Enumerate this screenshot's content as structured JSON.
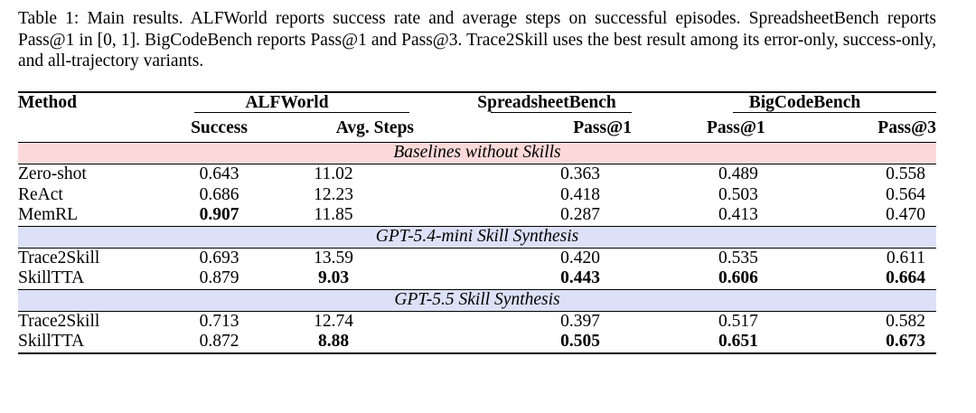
{
  "caption": "Table 1: Main results. ALFWorld reports success rate and average steps on successful episodes. SpreadsheetBench reports Pass@1 in [0, 1]. BigCodeBench reports Pass@1 and Pass@3. Trace2Skill uses the best result among its error-only, success-only, and all-trajectory variants.",
  "headers": {
    "method": "Method",
    "alfworld": "ALFWorld",
    "spreadsheet": "SpreadsheetBench",
    "bigcode": "BigCodeBench",
    "success": "Success",
    "avg_steps": "Avg. Steps",
    "ss_pass1": "Pass@1",
    "bc_pass1": "Pass@1",
    "bc_pass3": "Pass@3"
  },
  "sections": [
    {
      "title": "Baselines without Skills",
      "color": "#fbd9d9",
      "rows": [
        {
          "method": "Zero-shot",
          "success": "0.643",
          "avg_steps": "11.02",
          "ss_pass1": "0.363",
          "bc_pass1": "0.489",
          "bc_pass3": "0.558",
          "bold": []
        },
        {
          "method": "ReAct",
          "success": "0.686",
          "avg_steps": "12.23",
          "ss_pass1": "0.418",
          "bc_pass1": "0.503",
          "bc_pass3": "0.564",
          "bold": []
        },
        {
          "method": "MemRL",
          "success": "0.907",
          "avg_steps": "11.85",
          "ss_pass1": "0.287",
          "bc_pass1": "0.413",
          "bc_pass3": "0.470",
          "bold": [
            "success"
          ]
        }
      ]
    },
    {
      "title": "GPT-5.4-mini Skill Synthesis",
      "color": "#dde1f7",
      "rows": [
        {
          "method": "Trace2Skill",
          "success": "0.693",
          "avg_steps": "13.59",
          "ss_pass1": "0.420",
          "bc_pass1": "0.535",
          "bc_pass3": "0.611",
          "bold": []
        },
        {
          "method": "SkillTTA",
          "success": "0.879",
          "avg_steps": "9.03",
          "ss_pass1": "0.443",
          "bc_pass1": "0.606",
          "bc_pass3": "0.664",
          "bold": [
            "avg_steps",
            "ss_pass1",
            "bc_pass1",
            "bc_pass3"
          ]
        }
      ]
    },
    {
      "title": "GPT-5.5 Skill Synthesis",
      "color": "#dde1f7",
      "rows": [
        {
          "method": "Trace2Skill",
          "success": "0.713",
          "avg_steps": "12.74",
          "ss_pass1": "0.397",
          "bc_pass1": "0.517",
          "bc_pass3": "0.582",
          "bold": []
        },
        {
          "method": "SkillTTA",
          "success": "0.872",
          "avg_steps": "8.88",
          "ss_pass1": "0.505",
          "bc_pass1": "0.651",
          "bc_pass3": "0.673",
          "bold": [
            "avg_steps",
            "ss_pass1",
            "bc_pass1",
            "bc_pass3"
          ]
        }
      ]
    }
  ]
}
